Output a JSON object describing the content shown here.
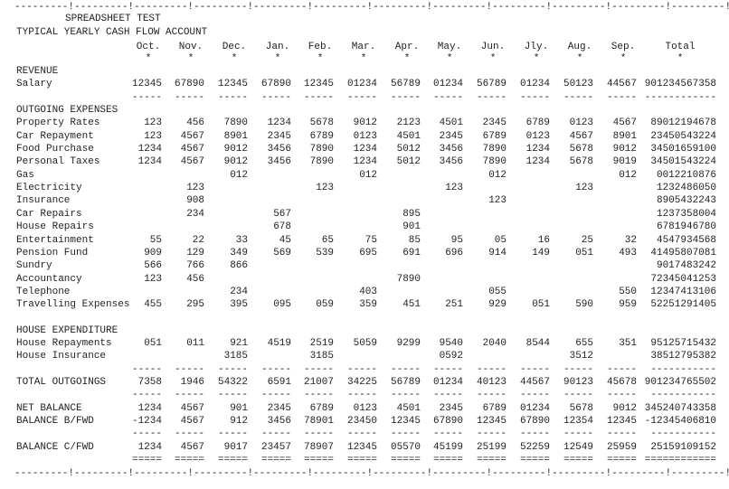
{
  "ruler_top": "---------!---------!---------!---------!---------!---------!---------!---------!---------!---------!---------!---------!",
  "ruler_bottom": "---------!---------!---------!---------!---------!---------!---------!---------!---------!---------!---------!---------!",
  "title": "SPREADSHEET TEST",
  "subtitle": "TYPICAL YEARLY CASH FLOW ACCOUNT",
  "columns": [
    "Oct.",
    "Nov.",
    "Dec.",
    "Jan.",
    "Feb.",
    "Mar.",
    "Apr.",
    "May.",
    "Jun.",
    "Jly.",
    "Aug.",
    "Sep.",
    "Total"
  ],
  "column_marker": "*",
  "rows": [
    {
      "type": "section",
      "label": "REVENUE"
    },
    {
      "type": "data",
      "label": "Salary",
      "cells": [
        "12345",
        "67890",
        "12345",
        "67890",
        "12345",
        "01234",
        "56789",
        "01234",
        "56789",
        "01234",
        "50123",
        "44567",
        "901234567358"
      ]
    },
    {
      "type": "rule",
      "cells": [
        "-----",
        "-----",
        "-----",
        "-----",
        "-----",
        "-----",
        "-----",
        "-----",
        "-----",
        "-----",
        "-----",
        "-----",
        "------------"
      ]
    },
    {
      "type": "section",
      "label": "OUTGOING EXPENSES"
    },
    {
      "type": "data",
      "label": "Property Rates",
      "cells": [
        "123",
        "456",
        "7890",
        "1234",
        "5678",
        "9012",
        "2123",
        "4501",
        "2345",
        "6789",
        "0123",
        "4567",
        "89012194678"
      ]
    },
    {
      "type": "data",
      "label": "Car Repayment",
      "cells": [
        "123",
        "4567",
        "8901",
        "2345",
        "6789",
        "0123",
        "4501",
        "2345",
        "6789",
        "0123",
        "4567",
        "8901",
        "23450543224"
      ]
    },
    {
      "type": "data",
      "label": "Food Purchase",
      "cells": [
        "1234",
        "4567",
        "9012",
        "3456",
        "7890",
        "1234",
        "5012",
        "3456",
        "7890",
        "1234",
        "5678",
        "9012",
        "34501659100"
      ]
    },
    {
      "type": "data",
      "label": "Personal Taxes",
      "cells": [
        "1234",
        "4567",
        "9012",
        "3456",
        "7890",
        "1234",
        "5012",
        "3456",
        "7890",
        "1234",
        "5678",
        "9019",
        "34501543224"
      ]
    },
    {
      "type": "data",
      "label": "Gas",
      "cells": [
        "",
        "",
        "012",
        "",
        "",
        "012",
        "",
        "",
        "012",
        "",
        "",
        "012",
        "0012210876"
      ]
    },
    {
      "type": "data",
      "label": "Electricity",
      "cells": [
        "",
        "123",
        "",
        "",
        "123",
        "",
        "",
        "123",
        "",
        "",
        "123",
        "",
        "1232486050"
      ]
    },
    {
      "type": "data",
      "label": "Insurance",
      "cells": [
        "",
        "908",
        "",
        "",
        "",
        "",
        "",
        "",
        "123",
        "",
        "",
        "",
        "8905432243"
      ]
    },
    {
      "type": "data",
      "label": "Car Repairs",
      "cells": [
        "",
        "234",
        "",
        "567",
        "",
        "",
        "895",
        "",
        "",
        "",
        "",
        "",
        "1237358004"
      ]
    },
    {
      "type": "data",
      "label": "House Repairs",
      "cells": [
        "",
        "",
        "",
        "678",
        "",
        "",
        "901",
        "",
        "",
        "",
        "",
        "",
        "6781946780"
      ]
    },
    {
      "type": "data",
      "label": "Entertainment",
      "cells": [
        "55",
        "22",
        "33",
        "45",
        "65",
        "75",
        "85",
        "95",
        "05",
        "16",
        "25",
        "32",
        "4547934568"
      ]
    },
    {
      "type": "data",
      "label": "Pension Fund",
      "cells": [
        "909",
        "129",
        "349",
        "569",
        "539",
        "695",
        "691",
        "696",
        "914",
        "149",
        "051",
        "493",
        "41495807081"
      ]
    },
    {
      "type": "data",
      "label": "Sundry",
      "cells": [
        "566",
        "766",
        "866",
        "",
        "",
        "",
        "",
        "",
        "",
        "",
        "",
        "",
        "9017483242"
      ]
    },
    {
      "type": "data",
      "label": "Accountancy",
      "cells": [
        "123",
        "456",
        "",
        "",
        "",
        "",
        "7890",
        "",
        "",
        "",
        "",
        "",
        "72345041253"
      ]
    },
    {
      "type": "data",
      "label": "Telephone",
      "cells": [
        "",
        "",
        "234",
        "",
        "",
        "403",
        "",
        "",
        "055",
        "",
        "",
        "550",
        "12347413106"
      ]
    },
    {
      "type": "data",
      "label": "Travelling Expenses",
      "cells": [
        "455",
        "295",
        "395",
        "095",
        "059",
        "359",
        "451",
        "251",
        "929",
        "051",
        "590",
        "959",
        "52251291405"
      ]
    },
    {
      "type": "section",
      "label": "HOUSE EXPENDITURE"
    },
    {
      "type": "data",
      "label": "House Repayments",
      "cells": [
        "051",
        "011",
        "921",
        "4519",
        "2519",
        "5059",
        "9299",
        "9540",
        "2040",
        "8544",
        "655",
        "351",
        "95125715432"
      ]
    },
    {
      "type": "data",
      "label": "House Insurance",
      "cells": [
        "",
        "",
        "3185",
        "",
        "3185",
        "",
        "",
        "0592",
        "",
        "",
        "3512",
        "",
        "38512795382"
      ]
    },
    {
      "type": "rule",
      "cells": [
        "-----",
        "-----",
        "-----",
        "-----",
        "-----",
        "-----",
        "-----",
        "-----",
        "-----",
        "-----",
        "-----",
        "-----",
        "-----------"
      ]
    },
    {
      "type": "data",
      "label": "TOTAL OUTGOINGS",
      "cells": [
        "7358",
        "1946",
        "54322",
        "6591",
        "21007",
        "34225",
        "56789",
        "01234",
        "40123",
        "44567",
        "90123",
        "45678",
        "901234765502"
      ]
    },
    {
      "type": "rule",
      "cells": [
        "-----",
        "-----",
        "-----",
        "-----",
        "-----",
        "-----",
        "-----",
        "-----",
        "-----",
        "-----",
        "-----",
        "-----",
        "-----------"
      ]
    },
    {
      "type": "data",
      "label": "NET BALANCE",
      "cells": [
        "1234",
        "4567",
        "901",
        "2345",
        "6789",
        "0123",
        "4501",
        "2345",
        "6789",
        "01234",
        "5678",
        "9012",
        "345240743358"
      ]
    },
    {
      "type": "data",
      "label": "BALANCE B/FWD",
      "cells": [
        "-1234",
        "4567",
        "912",
        "3456",
        "78901",
        "23450",
        "12345",
        "67890",
        "12345",
        "67890",
        "12354",
        "12345",
        "-12345406810"
      ]
    },
    {
      "type": "rule",
      "cells": [
        "-----",
        "-----",
        "-----",
        "-----",
        "-----",
        "-----",
        "-----",
        "-----",
        "-----",
        "-----",
        "-----",
        "-----",
        "-----------"
      ]
    },
    {
      "type": "data",
      "label": "BALANCE C/FWD",
      "cells": [
        "1234",
        "4567",
        "9017",
        "23457",
        "78907",
        "12345",
        "05570",
        "45199",
        "25199",
        "52259",
        "12549",
        "25959",
        "25159109152"
      ]
    },
    {
      "type": "rule",
      "cells": [
        "=====",
        "=====",
        "=====",
        "=====",
        "=====",
        "=====",
        "=====",
        "=====",
        "=====",
        "=====",
        "=====",
        "=====",
        "============"
      ]
    }
  ]
}
